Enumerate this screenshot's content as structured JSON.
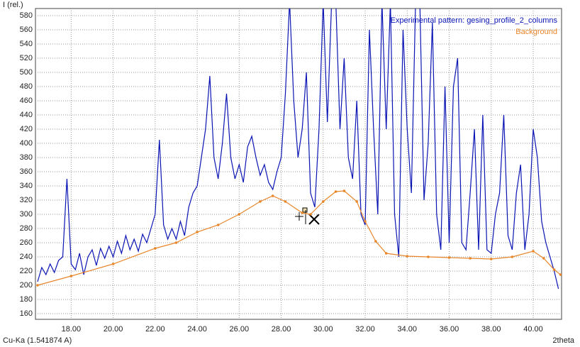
{
  "chart_data": {
    "type": "line",
    "y_label": "I (rel.)",
    "x_label": "2theta",
    "wavelength_label": "Cu-Ka (1.541874 A)",
    "xlim": [
      16.3,
      41.35
    ],
    "ylim": [
      152,
      590
    ],
    "xticks": [
      {
        "value": 18,
        "label": "18.00"
      },
      {
        "value": 20,
        "label": "20.00"
      },
      {
        "value": 22,
        "label": "22.00"
      },
      {
        "value": 24,
        "label": "24.00"
      },
      {
        "value": 26,
        "label": "26.00"
      },
      {
        "value": 28,
        "label": "28.00"
      },
      {
        "value": 30,
        "label": "30.00"
      },
      {
        "value": 32,
        "label": "32.00"
      },
      {
        "value": 34,
        "label": "34.00"
      },
      {
        "value": 36,
        "label": "36.00"
      },
      {
        "value": 38,
        "label": "38.00"
      },
      {
        "value": 40,
        "label": "40.00"
      }
    ],
    "yticks": [
      160,
      180,
      200,
      220,
      240,
      260,
      280,
      300,
      320,
      340,
      360,
      380,
      400,
      420,
      440,
      460,
      480,
      500,
      520,
      540,
      560,
      580
    ],
    "grid": true,
    "legend": "upper right",
    "series": [
      {
        "name": "Experimental pattern: gesing_profile_2_columns",
        "color": "#0a14b4",
        "x": [
          16.4,
          16.6,
          16.8,
          17.0,
          17.2,
          17.4,
          17.6,
          17.8,
          18.0,
          18.2,
          18.4,
          18.6,
          18.8,
          19.0,
          19.2,
          19.4,
          19.6,
          19.8,
          20.0,
          20.2,
          20.4,
          20.6,
          20.8,
          21.0,
          21.2,
          21.4,
          21.6,
          21.8,
          22.0,
          22.2,
          22.4,
          22.6,
          22.8,
          23.0,
          23.2,
          23.4,
          23.6,
          23.8,
          24.0,
          24.2,
          24.4,
          24.6,
          24.8,
          25.0,
          25.2,
          25.4,
          25.6,
          25.8,
          26.0,
          26.2,
          26.4,
          26.6,
          26.8,
          27.0,
          27.2,
          27.4,
          27.6,
          27.8,
          28.0,
          28.2,
          28.4,
          28.6,
          28.8,
          29.0,
          29.2,
          29.4,
          29.6,
          29.8,
          30.0,
          30.2,
          30.4,
          30.6,
          30.8,
          31.0,
          31.2,
          31.4,
          31.6,
          31.8,
          32.0,
          32.2,
          32.4,
          32.6,
          32.8,
          33.0,
          33.2,
          33.4,
          33.6,
          33.8,
          34.0,
          34.2,
          34.4,
          34.6,
          34.8,
          35.0,
          35.2,
          35.4,
          35.6,
          35.8,
          36.0,
          36.2,
          36.4,
          36.6,
          36.8,
          37.0,
          37.2,
          37.4,
          37.6,
          37.8,
          38.0,
          38.2,
          38.4,
          38.6,
          38.8,
          39.0,
          39.2,
          39.4,
          39.6,
          39.8,
          40.0,
          40.2,
          40.4,
          40.6,
          40.8,
          41.0,
          41.2
        ],
        "values": [
          205,
          225,
          215,
          230,
          218,
          235,
          240,
          350,
          230,
          222,
          245,
          215,
          240,
          250,
          228,
          252,
          238,
          255,
          240,
          262,
          245,
          270,
          250,
          265,
          248,
          272,
          260,
          280,
          300,
          405,
          285,
          265,
          280,
          265,
          290,
          270,
          310,
          330,
          340,
          380,
          420,
          495,
          380,
          350,
          400,
          470,
          380,
          350,
          370,
          345,
          395,
          410,
          380,
          355,
          370,
          345,
          335,
          360,
          380,
          470,
          600,
          460,
          380,
          420,
          500,
          330,
          310,
          420,
          600,
          430,
          600,
          600,
          420,
          520,
          380,
          350,
          460,
          300,
          285,
          560,
          420,
          300,
          600,
          420,
          600,
          300,
          240,
          560,
          420,
          330,
          600,
          600,
          320,
          400,
          570,
          300,
          250,
          480,
          260,
          480,
          520,
          260,
          250,
          330,
          420,
          250,
          440,
          250,
          245,
          300,
          330,
          440,
          270,
          250,
          330,
          370,
          250,
          300,
          420,
          380,
          290,
          260,
          240,
          220,
          195
        ]
      },
      {
        "name": "Background",
        "color": "#e8862a",
        "x": [
          16.4,
          18.0,
          20.0,
          22.0,
          23.0,
          24.0,
          25.0,
          26.0,
          27.0,
          27.6,
          28.2,
          29.0,
          29.4,
          30.0,
          30.6,
          31.0,
          31.6,
          32.0,
          32.5,
          33.0,
          34.0,
          35.0,
          36.0,
          37.0,
          38.0,
          39.0,
          40.0,
          40.5,
          41.0,
          41.3
        ],
        "values": [
          200,
          213,
          230,
          252,
          260,
          275,
          285,
          300,
          318,
          326,
          318,
          302,
          300,
          318,
          332,
          333,
          318,
          290,
          262,
          245,
          241,
          240,
          239,
          238,
          237,
          240,
          248,
          238,
          222,
          215
        ]
      }
    ]
  }
}
